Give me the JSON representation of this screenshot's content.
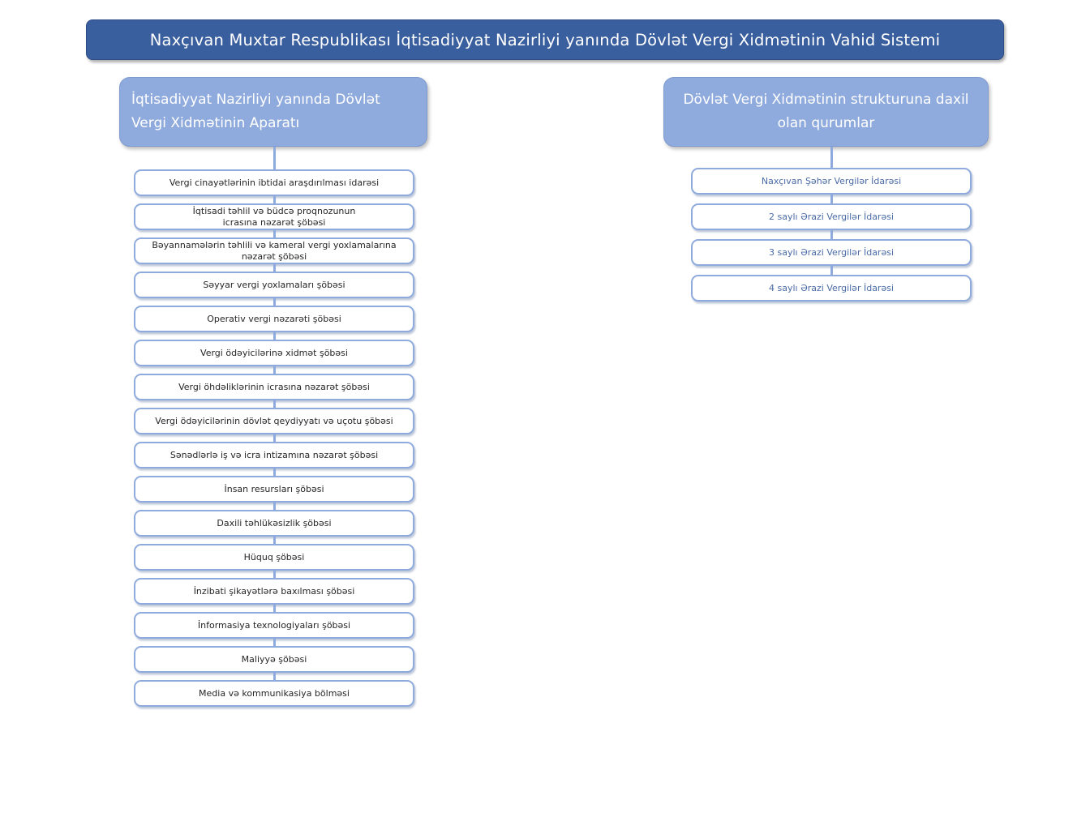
{
  "title": "Naxçıvan Muxtar Respublikası İqtisadiyyat Nazirliyi yanında Dövlət Vergi Xidmətinin Vahid Sistemi",
  "colors": {
    "banner_bg": "#3a5f9e",
    "header_bg": "#8faadc",
    "box_border": "#8faadc",
    "connector": "#8faadc",
    "left_text": "#262626",
    "right_text": "#4a6ba6"
  },
  "left_column": {
    "header": "İqtisadiyyat Nazirliyi yanında Dövlət Vergi Xidmətinin Aparatı",
    "items": [
      "Vergi cinayətlərinin ibtidai araşdırılması idarəsi",
      "İqtisadi təhlil və büdcə proqnozunun\nicrasına nəzarət şöbəsi",
      "Bəyannamələrin təhlili və kameral vergi yoxlamalarına\nnəzarət şöbəsi",
      "Səyyar vergi yoxlamaları şöbəsi",
      "Operativ vergi nəzarəti şöbəsi",
      "Vergi ödəyicilərinə xidmət şöbəsi",
      "Vergi öhdəliklərinin icrasına nəzarət şöbəsi",
      "Vergi ödəyicilərinin dövlət qeydiyyatı və uçotu şöbəsi",
      "Sənədlərlə iş və icra intizamına nəzarət şöbəsi",
      "İnsan resursları şöbəsi",
      "Daxili təhlükəsizlik şöbəsi",
      "Hüquq şöbəsi",
      "İnzibati şikayətlərə baxılması şöbəsi",
      "İnformasiya texnologiyaları şöbəsi",
      "Maliyyə şöbəsi",
      "Media və kommunikasiya bölməsi"
    ]
  },
  "right_column": {
    "header": "Dövlət Vergi Xidmətinin strukturuna daxil olan qurumlar",
    "items": [
      "Naxçıvan Şəhər Vergilər İdarəsi",
      "2 saylı Ərazi Vergilər İdarəsi",
      "3 saylı Ərazi Vergilər İdarəsi",
      "4 saylı Ərazi Vergilər İdarəsi"
    ]
  }
}
